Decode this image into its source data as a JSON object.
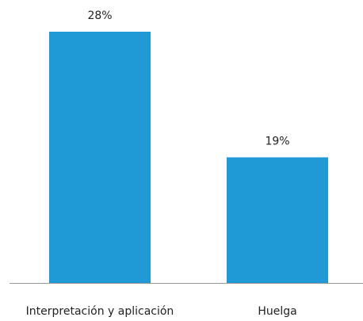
{
  "chart_data": {
    "type": "bar",
    "categories": [
      "Interpretación y aplicación",
      "Huelga"
    ],
    "values": [
      28,
      19
    ],
    "value_labels": [
      "28%",
      "19%"
    ],
    "color": "#1f9ad6",
    "ylim": [
      10,
      28
    ]
  }
}
